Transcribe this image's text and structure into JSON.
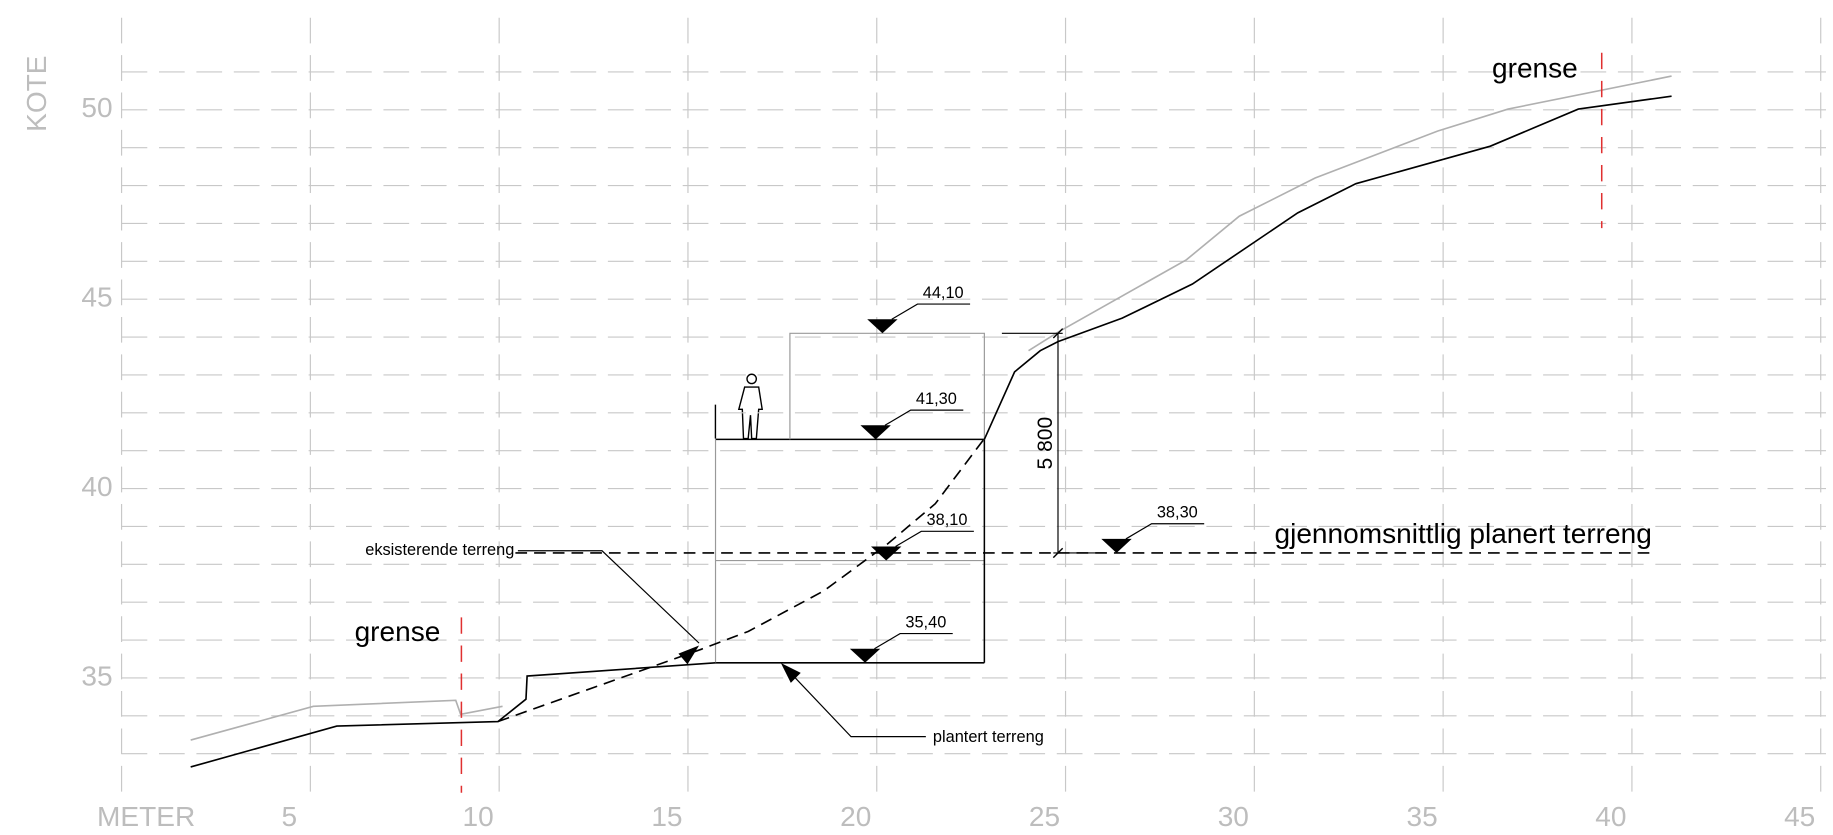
{
  "chart_data": {
    "type": "line",
    "xlabel": "METER",
    "ylabel": "KOTE",
    "xlim": [
      0,
      45
    ],
    "ylim": [
      32,
      52
    ],
    "xticks": [
      5,
      10,
      15,
      20,
      25,
      30,
      35,
      40,
      45
    ],
    "xgrid": [
      0
    ],
    "yticks": [
      35,
      40,
      45,
      50
    ],
    "yminor": [
      33,
      34,
      36,
      37,
      38,
      39,
      41,
      42,
      43,
      44,
      46,
      47,
      48,
      49,
      51
    ],
    "grid": true,
    "series": [
      {
        "color": "#b0b0b0",
        "dash": false,
        "x": [
          1.83,
          5.08,
          8.85,
          8.98,
          10.09,
          null,
          24.02,
          24.8,
          28.2,
          29.6,
          31.61,
          34.86,
          36.72,
          41.05
        ],
        "values": [
          33.36,
          34.25,
          34.41,
          34.04,
          34.25,
          null,
          43.64,
          44.13,
          46.04,
          47.19,
          48.2,
          49.44,
          50.02,
          50.89
        ]
      },
      {
        "name": "plantert terreng",
        "color": "#000000",
        "dash": false,
        "x": [
          1.83,
          5.7,
          9.97,
          10.71,
          10.74,
          15.73,
          null,
          22.85,
          23.65,
          24.33,
          24.8,
          26.5,
          28.36,
          31.15,
          32.69,
          36.25,
          38.58,
          41.05
        ],
        "values": [
          32.65,
          33.73,
          33.85,
          34.44,
          35.05,
          35.4,
          null,
          41.3,
          43.08,
          43.64,
          43.88,
          44.5,
          45.4,
          47.28,
          48.05,
          49.04,
          50.02,
          50.36
        ]
      },
      {
        "name": "eksisterende terreng",
        "color": "#000000",
        "dash": true,
        "x": [
          9.97,
          15.36,
          16.6,
          18.6,
          20.3,
          21.55,
          22.85
        ],
        "values": [
          33.85,
          35.76,
          36.23,
          37.3,
          38.55,
          39.6,
          41.32
        ]
      },
      {
        "name": "gjennomsnittlig planert terreng",
        "color": "#000000",
        "dash": true,
        "x": [
          10.43,
          40.6
        ],
        "values": [
          38.3,
          38.3
        ]
      }
    ],
    "levels": {
      "x": [
        20.15,
        19.97,
        20.25,
        19.69,
        26.35
      ],
      "values": [
        44.1,
        41.3,
        38.1,
        35.4,
        38.3
      ],
      "value_labels": [
        "44,10",
        "41,30",
        "38,10",
        "35,40",
        "38,30"
      ]
    },
    "building_x": [
      15.73,
      17.7,
      22.85
    ],
    "dimension": {
      "x": 24.8,
      "value": 5800,
      "value_label": "5 800"
    },
    "boundaries": [
      {
        "label": "grense",
        "x": 9.0
      },
      {
        "label": "grense",
        "x": 39.2
      }
    ]
  }
}
